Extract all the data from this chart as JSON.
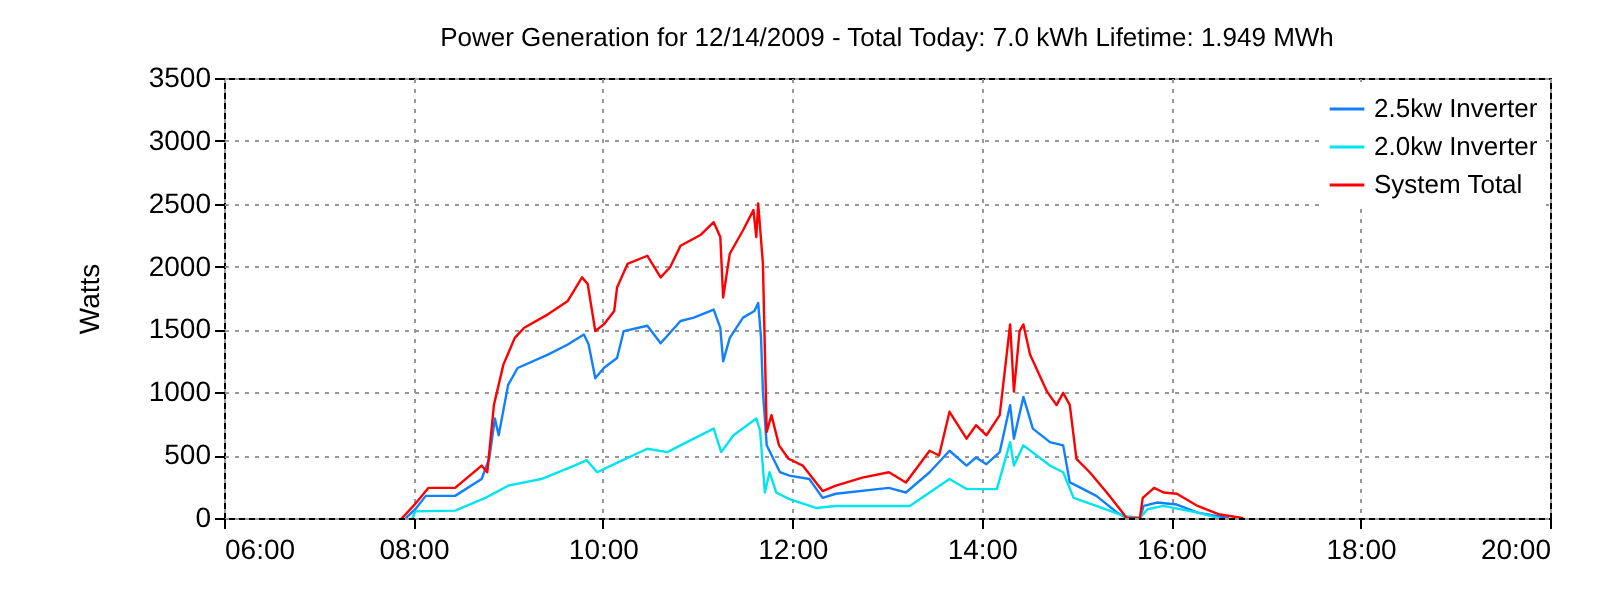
{
  "chart_data": {
    "type": "line",
    "title": "Power Generation for 12/14/2009 - Total Today: 7.0 kWh   Lifetime: 1.949 MWh",
    "ylabel": "Watts",
    "xlim": [
      6,
      20
    ],
    "xticks": [
      {
        "value": 6,
        "label": "06:00"
      },
      {
        "value": 8,
        "label": "08:00"
      },
      {
        "value": 10,
        "label": "10:00"
      },
      {
        "value": 12,
        "label": "12:00"
      },
      {
        "value": 14,
        "label": "14:00"
      },
      {
        "value": 16,
        "label": "16:00"
      },
      {
        "value": 18,
        "label": "18:00"
      },
      {
        "value": 20,
        "label": "20:00"
      }
    ],
    "ylim": [
      0,
      3500
    ],
    "yticks": [
      0,
      500,
      1000,
      1500,
      2000,
      2500,
      3000,
      3500
    ],
    "grid": true,
    "legend": "top right",
    "series": [
      {
        "name": "2.5kw Inverter",
        "color": "#1080ff",
        "x": [
          7.92,
          8.02,
          8.13,
          8.44,
          8.72,
          8.8,
          8.86,
          8.9,
          9.0,
          9.1,
          9.42,
          9.63,
          9.8,
          9.85,
          9.92,
          10.01,
          10.15,
          10.22,
          10.47,
          10.61,
          10.82,
          10.96,
          11.17,
          11.24,
          11.27,
          11.34,
          11.48,
          11.6,
          11.64,
          11.67,
          11.69,
          11.73,
          11.8,
          11.87,
          11.97,
          12.18,
          12.32,
          12.46,
          13.02,
          13.2,
          13.45,
          13.66,
          13.84,
          13.94,
          14.05,
          14.19,
          14.3,
          14.34,
          14.44,
          14.54,
          14.72,
          14.86,
          14.93,
          15.0,
          15.21,
          15.43,
          15.53,
          15.67,
          15.71,
          15.85,
          16.06,
          16.28,
          16.6
        ],
        "values": [
          0,
          70,
          176,
          176,
          310,
          471,
          791,
          658,
          1059,
          1193,
          1300,
          1380,
          1460,
          1380,
          1112,
          1193,
          1273,
          1487,
          1529,
          1390,
          1567,
          1594,
          1658,
          1513,
          1246,
          1433,
          1594,
          1647,
          1711,
          1433,
          1005,
          578,
          471,
          364,
          337,
          310,
          160,
          193,
          240,
          203,
          364,
          535,
          417,
          481,
          428,
          524,
          898,
          631,
          963,
          711,
          604,
          578,
          283,
          257,
          176,
          43,
          0,
          0,
          96,
          123,
          107,
          43,
          0
        ]
      },
      {
        "name": "2.0kw Inverter",
        "color": "#00e5ee",
        "x": [
          7.99,
          8.02,
          8.44,
          8.76,
          9.0,
          9.35,
          9.7,
          9.83,
          9.94,
          10.12,
          10.47,
          10.68,
          10.96,
          11.17,
          11.25,
          11.38,
          11.62,
          11.66,
          11.71,
          11.76,
          11.83,
          11.97,
          12.25,
          12.46,
          13.24,
          13.66,
          13.84,
          14.16,
          14.3,
          14.34,
          14.44,
          14.72,
          14.86,
          14.97,
          15.21,
          15.5,
          15.67,
          15.75,
          15.92,
          16.28,
          16.5
        ],
        "values": [
          0,
          53,
          59,
          160,
          257,
          310,
          417,
          460,
          364,
          428,
          551,
          524,
          631,
          711,
          524,
          658,
          791,
          695,
          203,
          364,
          203,
          150,
          80,
          96,
          96,
          310,
          230,
          230,
          604,
          417,
          578,
          417,
          364,
          160,
          96,
          16,
          0,
          70,
          96,
          43,
          0
        ]
      },
      {
        "name": "System Total",
        "color": "#ff0000",
        "x": [
          7.88,
          8.0,
          8.16,
          8.44,
          8.72,
          8.78,
          8.85,
          8.95,
          9.07,
          9.17,
          9.42,
          9.63,
          9.78,
          9.84,
          9.92,
          10.01,
          10.12,
          10.15,
          10.26,
          10.47,
          10.61,
          10.71,
          10.82,
          11.03,
          11.17,
          11.24,
          11.27,
          11.34,
          11.48,
          11.59,
          11.62,
          11.64,
          11.69,
          11.73,
          11.78,
          11.86,
          11.96,
          12.11,
          12.32,
          12.46,
          12.74,
          13.02,
          13.2,
          13.45,
          13.55,
          13.66,
          13.84,
          13.94,
          14.05,
          14.19,
          14.3,
          14.34,
          14.4,
          14.44,
          14.51,
          14.69,
          14.79,
          14.86,
          14.93,
          15.0,
          15.14,
          15.32,
          15.46,
          15.53,
          15.67,
          15.7,
          15.82,
          15.92,
          16.06,
          16.28,
          16.5,
          16.75
        ],
        "values": [
          0,
          96,
          240,
          240,
          417,
          364,
          900,
          1220,
          1433,
          1513,
          1620,
          1727,
          1914,
          1861,
          1487,
          1540,
          1647,
          1834,
          2021,
          2086,
          1914,
          1995,
          2166,
          2251,
          2353,
          2235,
          1754,
          2102,
          2289,
          2449,
          2235,
          2503,
          2021,
          684,
          818,
          578,
          471,
          417,
          214,
          257,
          321,
          364,
          283,
          535,
          497,
          845,
          631,
          738,
          658,
          818,
          1540,
          1005,
          1487,
          1540,
          1300,
          1005,
          898,
          995,
          898,
          471,
          364,
          203,
          70,
          0,
          0,
          160,
          240,
          203,
          193,
          96,
          30,
          0
        ]
      }
    ]
  }
}
